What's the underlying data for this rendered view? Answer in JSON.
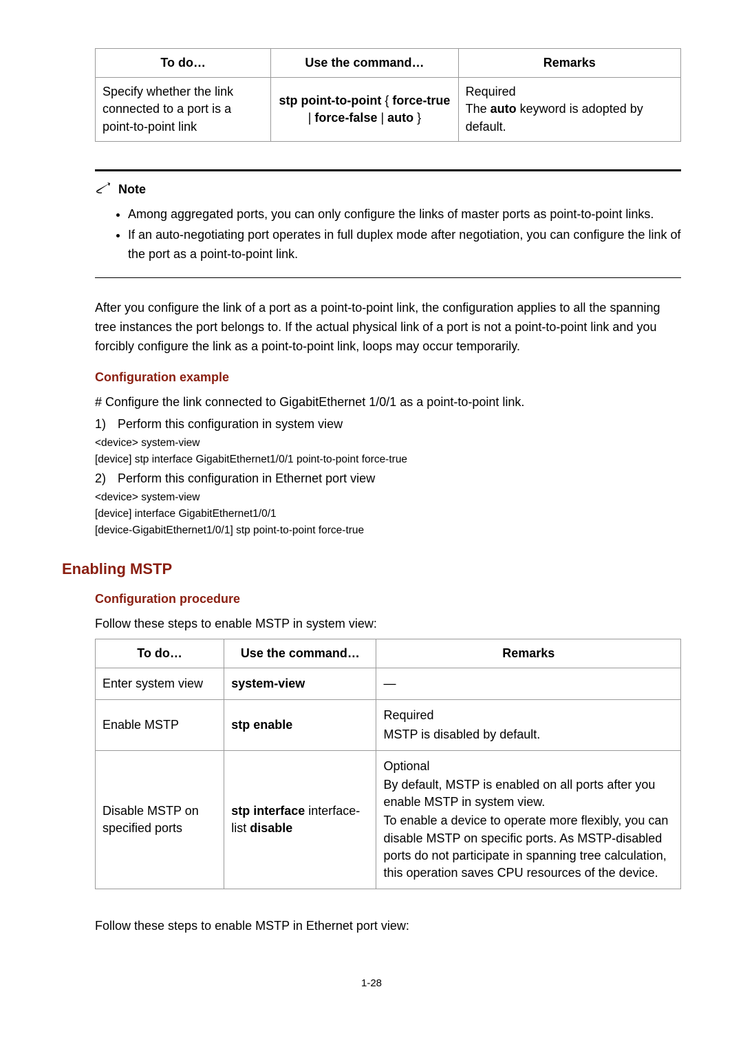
{
  "table1": {
    "headers": [
      "To do…",
      "Use the command…",
      "Remarks"
    ],
    "row": {
      "todo": "Specify whether the link connected to a port is a point-to-point link",
      "cmd_pre": "stp point-to-point",
      "cmd_brace_open": " { ",
      "cmd_opt1": "force-true",
      "cmd_sep1": " | ",
      "cmd_opt2": "force-false",
      "cmd_sep2": " | ",
      "cmd_opt3": "auto",
      "cmd_brace_close": " }",
      "rem_line1": "Required",
      "rem_pre": "The ",
      "rem_bold": "auto",
      "rem_post": " keyword is adopted by default."
    }
  },
  "note": {
    "label": "Note",
    "items": [
      "Among aggregated ports, you can only configure the links of master ports as point-to-point links.",
      "If an auto-negotiating port operates in full duplex mode after negotiation, you can configure the link of the port as a point-to-point link."
    ]
  },
  "para1": "After you configure the link of a port as a point-to-point link, the configuration applies to all the spanning tree instances the port belongs to. If the actual physical link of a port is not a point-to-point link and you forcibly configure the link as a point-to-point link, loops may occur temporarily.",
  "sub1": "Configuration example",
  "example_intro": "# Configure the link connected to GigabitEthernet 1/0/1 as a point-to-point link.",
  "step1_num": "1)",
  "step1_text": "Perform this configuration in system view",
  "code1a": "<device> system-view",
  "code1b": "[device] stp interface GigabitEthernet1/0/1 point-to-point force-true",
  "step2_num": "2)",
  "step2_text": "Perform this configuration in Ethernet port view",
  "code2a": "<device> system-view",
  "code2b": "[device] interface GigabitEthernet1/0/1",
  "code2c": "[device-GigabitEthernet1/0/1] stp point-to-point force-true",
  "h2": "Enabling MSTP",
  "sub2": "Configuration procedure",
  "proc_intro": "Follow these steps to enable MSTP in system view:",
  "table2": {
    "headers": [
      "To do…",
      "Use the command…",
      "Remarks"
    ],
    "rows": [
      {
        "todo": "Enter system view",
        "cmd_bold": "system-view",
        "cmd_plain": "",
        "cmd_bold2": "",
        "remarks": "—"
      },
      {
        "todo": "Enable MSTP",
        "cmd_bold": "stp enable",
        "cmd_plain": "",
        "cmd_bold2": "",
        "remarks": "Required\nMSTP is disabled by default."
      },
      {
        "todo": "Disable MSTP on specified ports",
        "cmd_bold": "stp interface",
        "cmd_plain": " interface-list ",
        "cmd_bold2": "disable",
        "remarks": "Optional\nBy default, MSTP is enabled on all ports after you enable MSTP in system view.\nTo enable a device to operate more flexibly, you can disable MSTP on specific ports. As MSTP-disabled ports do not participate in spanning tree calculation, this operation saves CPU resources of the device."
      }
    ]
  },
  "closing": "Follow these steps to enable MSTP in Ethernet port view:",
  "page_num": "1-28",
  "colors": {
    "heading_red": "#8a1f11"
  }
}
